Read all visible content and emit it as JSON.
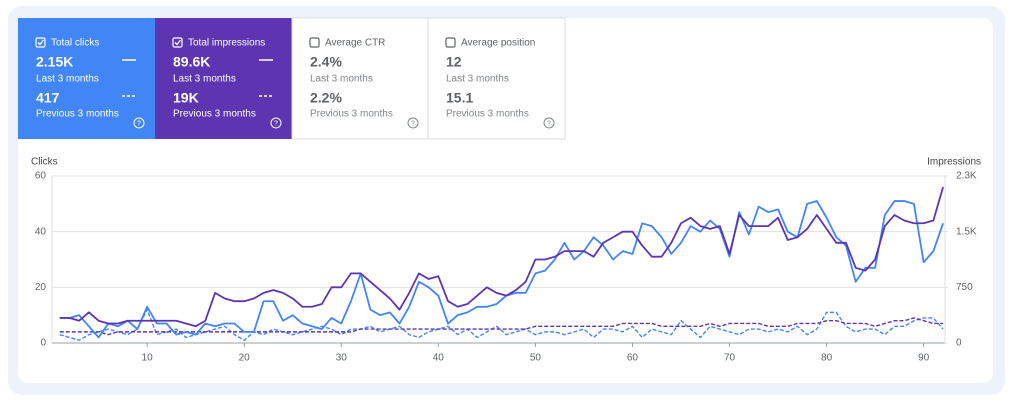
{
  "cards": [
    {
      "label": "Total clicks",
      "checked": true,
      "color": "#4285f4",
      "value": "2.15K",
      "period": "Last 3 months",
      "prev_value": "417",
      "prev_period": "Previous 3 months"
    },
    {
      "label": "Total impressions",
      "checked": true,
      "color": "#5e35b1",
      "value": "89.6K",
      "period": "Last 3 months",
      "prev_value": "19K",
      "prev_period": "Previous 3 months"
    },
    {
      "label": "Average CTR",
      "checked": false,
      "color": "#ffffff",
      "value": "2.4%",
      "period": "Last 3 months",
      "prev_value": "2.2%",
      "prev_period": "Previous 3 months"
    },
    {
      "label": "Average position",
      "checked": false,
      "color": "#ffffff",
      "value": "12",
      "period": "Last 3 months",
      "prev_value": "15.1",
      "prev_period": "Previous 3 months"
    }
  ],
  "chart_data": {
    "type": "line",
    "y_label": "Clicks",
    "y2_label": "Impressions",
    "x": [
      1,
      2,
      3,
      4,
      5,
      6,
      7,
      8,
      9,
      10,
      11,
      12,
      13,
      14,
      15,
      16,
      17,
      18,
      19,
      20,
      21,
      22,
      23,
      24,
      25,
      26,
      27,
      28,
      29,
      30,
      31,
      32,
      33,
      34,
      35,
      36,
      37,
      38,
      39,
      40,
      41,
      42,
      43,
      44,
      45,
      46,
      47,
      48,
      49,
      50,
      51,
      52,
      53,
      54,
      55,
      56,
      57,
      58,
      59,
      60,
      61,
      62,
      63,
      64,
      65,
      66,
      67,
      68,
      69,
      70,
      71,
      72,
      73,
      74,
      75,
      76,
      77,
      78,
      79,
      80,
      81,
      82,
      83,
      84,
      85,
      86,
      87,
      88,
      89,
      90,
      91,
      92
    ],
    "xlim": [
      0.2,
      92.2
    ],
    "xticks": [
      10,
      20,
      30,
      40,
      50,
      60,
      70,
      80,
      90
    ],
    "ylim": [
      0,
      60
    ],
    "yticks": [
      0,
      20,
      40,
      60
    ],
    "y2lim": [
      0,
      2250
    ],
    "y2ticks": [
      0,
      750,
      {
        "value": 1500,
        "label": "1.5K"
      },
      {
        "value": 2250,
        "label": "2.3K"
      }
    ],
    "grid": true,
    "series": [
      {
        "color": "#4285f4",
        "dashed": true,
        "values": [
          3,
          2,
          1,
          3,
          4,
          5,
          4,
          3,
          5,
          12,
          3,
          4,
          5,
          2,
          3,
          4,
          5,
          6,
          3,
          1,
          4,
          3,
          5,
          4,
          3,
          4,
          5,
          6,
          5,
          3,
          5,
          5,
          6,
          4,
          5,
          6,
          3,
          2,
          4,
          5,
          6,
          3,
          5,
          2,
          4,
          6,
          3,
          4,
          5,
          3,
          4,
          4,
          3,
          4,
          5,
          2,
          5,
          5,
          4,
          6,
          2,
          5,
          4,
          3,
          8,
          5,
          2,
          6,
          5,
          4,
          3,
          5,
          5,
          4,
          5,
          4,
          6,
          3,
          5,
          11,
          11,
          6,
          4,
          5,
          5,
          3,
          6,
          6,
          8,
          9,
          9,
          5
        ]
      },
      {
        "color": "#5e35b1",
        "dashed": true,
        "axis": "y2",
        "values": [
          150,
          150,
          150,
          150,
          150,
          113,
          150,
          150,
          150,
          150,
          150,
          150,
          150,
          150,
          150,
          150,
          150,
          150,
          150,
          150,
          150,
          150,
          150,
          150,
          150,
          150,
          150,
          150,
          150,
          150,
          150,
          188,
          188,
          188,
          188,
          188,
          188,
          188,
          188,
          188,
          188,
          188,
          188,
          188,
          188,
          188,
          188,
          188,
          188,
          225,
          225,
          225,
          225,
          225,
          225,
          225,
          225,
          225,
          263,
          263,
          263,
          263,
          225,
          225,
          225,
          225,
          225,
          263,
          225,
          263,
          263,
          263,
          263,
          225,
          225,
          225,
          263,
          263,
          263,
          300,
          300,
          263,
          263,
          263,
          225,
          263,
          300,
          300,
          338,
          300,
          263,
          263
        ]
      },
      {
        "color": "#4285f4",
        "dashed": false,
        "values": [
          9,
          9,
          10,
          6,
          2,
          7,
          6,
          8,
          5,
          13,
          7,
          7,
          3,
          4,
          3,
          7,
          6,
          7,
          7,
          4,
          4,
          15,
          15,
          8,
          10,
          7,
          6,
          5,
          9,
          7,
          15,
          25,
          12,
          10,
          11,
          7,
          13,
          22,
          20,
          17,
          7,
          10,
          11,
          13,
          13,
          14,
          17,
          18,
          18,
          25,
          26,
          30,
          36,
          30,
          33,
          38,
          35,
          30,
          33,
          32,
          43,
          42,
          38,
          32,
          36,
          42,
          40,
          44,
          41,
          31,
          47,
          39,
          49,
          47,
          48,
          40,
          38,
          50,
          51,
          45,
          38,
          35,
          22,
          27,
          27,
          46,
          51,
          51,
          50,
          29,
          33,
          43
        ]
      },
      {
        "color": "#5e35b1",
        "dashed": false,
        "axis": "y2",
        "values": [
          338,
          338,
          300,
          413,
          300,
          263,
          263,
          300,
          300,
          300,
          300,
          300,
          300,
          263,
          225,
          300,
          675,
          600,
          563,
          563,
          600,
          675,
          713,
          675,
          600,
          488,
          488,
          525,
          750,
          750,
          938,
          938,
          825,
          713,
          600,
          450,
          675,
          938,
          863,
          900,
          563,
          488,
          525,
          638,
          750,
          675,
          638,
          713,
          825,
          1125,
          1125,
          1163,
          1238,
          1238,
          1238,
          1163,
          1350,
          1425,
          1500,
          1500,
          1313,
          1163,
          1163,
          1350,
          1613,
          1688,
          1575,
          1538,
          1575,
          1200,
          1725,
          1575,
          1575,
          1575,
          1688,
          1388,
          1425,
          1538,
          1725,
          1538,
          1350,
          1350,
          1013,
          975,
          1125,
          1575,
          1725,
          1650,
          1613,
          1613,
          1650,
          2100
        ]
      }
    ]
  }
}
